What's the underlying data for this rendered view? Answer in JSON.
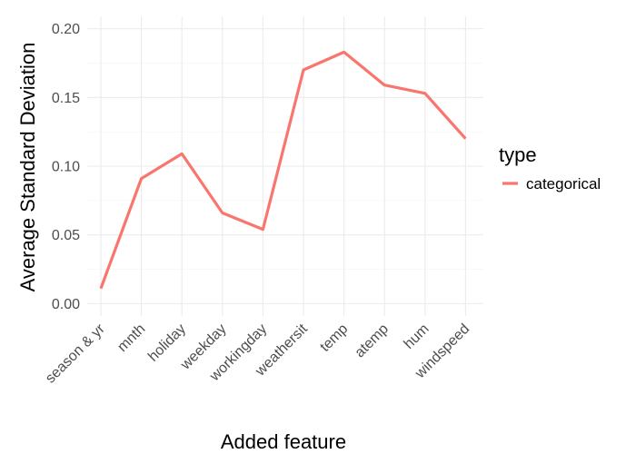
{
  "chart_data": {
    "type": "line",
    "xlabel": "Added feature",
    "ylabel": "Average Standard Deviation",
    "categories": [
      "season & yr",
      "mnth",
      "holiday",
      "weekday",
      "workingday",
      "weathersit",
      "temp",
      "atemp",
      "hum",
      "windspeed"
    ],
    "series": [
      {
        "name": "categorical",
        "color": "#F8766D",
        "values": [
          0.011,
          0.091,
          0.109,
          0.066,
          0.054,
          0.17,
          0.183,
          0.159,
          0.153,
          0.12
        ]
      }
    ],
    "ylim": [
      -0.009,
      0.209
    ],
    "yticks": [
      0.0,
      0.05,
      0.1,
      0.15,
      0.2
    ],
    "ytick_labels": [
      "0.00",
      "0.05",
      "0.10",
      "0.15",
      "0.20"
    ],
    "legend": {
      "title": "type",
      "position": "right"
    },
    "grid": true
  }
}
